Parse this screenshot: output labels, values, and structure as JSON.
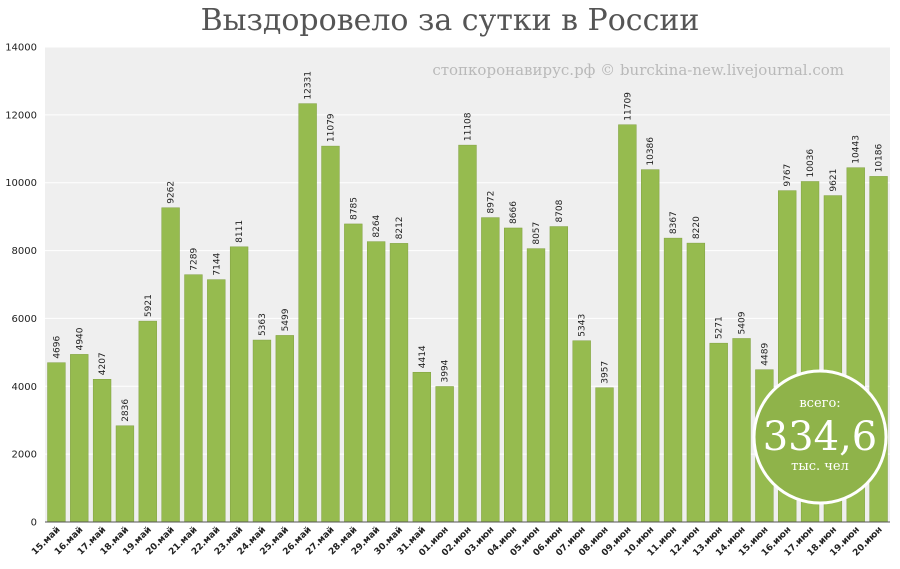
{
  "title": "Выздоровело за сутки в России",
  "watermark": "стопкоронавирус.рф © burckina-new.livejournal.com",
  "badge": {
    "prefix": "всего:",
    "value": "334,6",
    "unit": "тыс. чел"
  },
  "colors": {
    "bar": "#96bb4f",
    "bar_edge": "#7f9f3f",
    "plot_bg": "#efefef",
    "grid": "#ffffff",
    "badge": "#8fb34a"
  },
  "chart_data": {
    "type": "bar",
    "title": "Выздоровело за сутки в России",
    "xlabel": "",
    "ylabel": "",
    "ylim": [
      0,
      14000
    ],
    "yticks": [
      0,
      2000,
      4000,
      6000,
      8000,
      10000,
      12000,
      14000
    ],
    "grid": true,
    "categories": [
      "15.май",
      "16.май",
      "17.май",
      "18.май",
      "19.май",
      "20.май",
      "21.май",
      "22.май",
      "23.май",
      "24.май",
      "25.май",
      "26.май",
      "27.май",
      "28.май",
      "29.май",
      "30.май",
      "31.май",
      "01.июн",
      "02.июн",
      "03.июн",
      "04.июн",
      "05.июн",
      "06.июн",
      "07.июн",
      "08.июн",
      "09.июн",
      "10.июн",
      "11.июн",
      "12.июн",
      "13.июн",
      "14.июн",
      "15.июн",
      "16.июн",
      "17.июн",
      "18.июн",
      "19.июн",
      "20.июн"
    ],
    "values": [
      4696,
      4940,
      4207,
      2836,
      5921,
      9262,
      7289,
      7144,
      8111,
      5363,
      5499,
      12331,
      11079,
      8785,
      8264,
      8212,
      4414,
      3994,
      11108,
      8972,
      8666,
      8057,
      8708,
      5343,
      3957,
      11709,
      10386,
      8367,
      8220,
      5271,
      5409,
      4489,
      9767,
      10036,
      9621,
      10443,
      10186
    ]
  }
}
